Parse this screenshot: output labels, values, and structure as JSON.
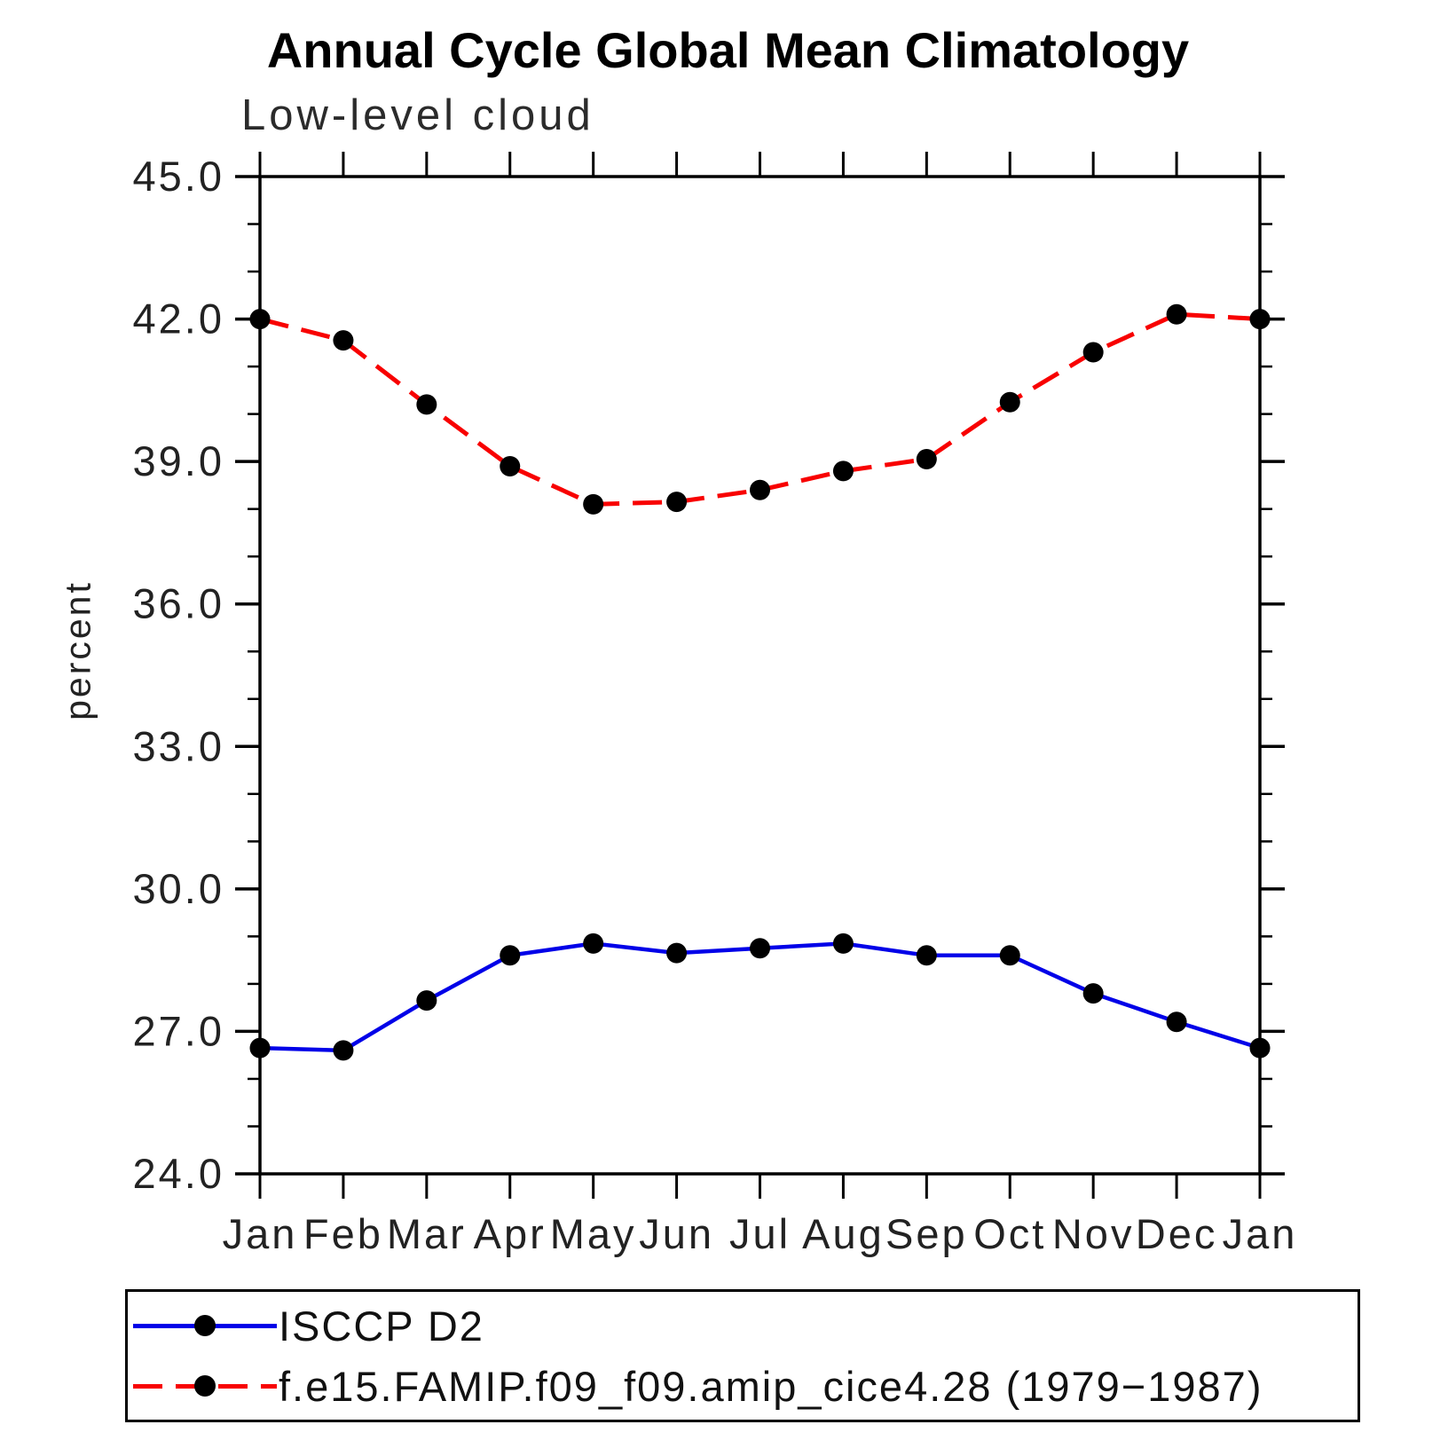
{
  "header": {
    "title": "Annual Cycle Global Mean Climatology",
    "subtitle": "Low-level cloud"
  },
  "chart_data": {
    "type": "line",
    "x": [
      "Jan",
      "Feb",
      "Mar",
      "Apr",
      "May",
      "Jun",
      "Jul",
      "Aug",
      "Sep",
      "Oct",
      "Nov",
      "Dec",
      "Jan"
    ],
    "series": [
      {
        "name": "ISCCP D2",
        "color": "#0000e8",
        "line_style": "solid",
        "marker": "filled-circle",
        "values": [
          26.65,
          26.6,
          27.65,
          28.6,
          28.85,
          28.65,
          28.75,
          28.85,
          28.6,
          28.6,
          27.8,
          27.2,
          26.65
        ]
      },
      {
        "name": "f.e15.FAMIP.f09_f09.amip_cice4.28 (1979−1987)",
        "color": "#f80000",
        "line_style": "dashed",
        "marker": "filled-circle",
        "values": [
          42.0,
          41.55,
          40.2,
          38.9,
          38.1,
          38.15,
          38.4,
          38.8,
          39.05,
          40.25,
          41.3,
          42.1,
          42.0
        ]
      }
    ],
    "title": "Annual Cycle Global Mean Climatology",
    "subtitle": "Low-level cloud",
    "xlabel": "",
    "ylabel": "percent",
    "ylim": [
      24.0,
      45.0
    ],
    "ytick_major_interval": 3.0,
    "ytick_minor_interval": 1.0,
    "ytick_labels": [
      "24.0",
      "27.0",
      "30.0",
      "33.0",
      "36.0",
      "39.0",
      "42.0",
      "45.0"
    ],
    "grid": false,
    "legend_position": "bottom-left-box",
    "marker_color": "#000000",
    "axis_color": "#000000"
  }
}
